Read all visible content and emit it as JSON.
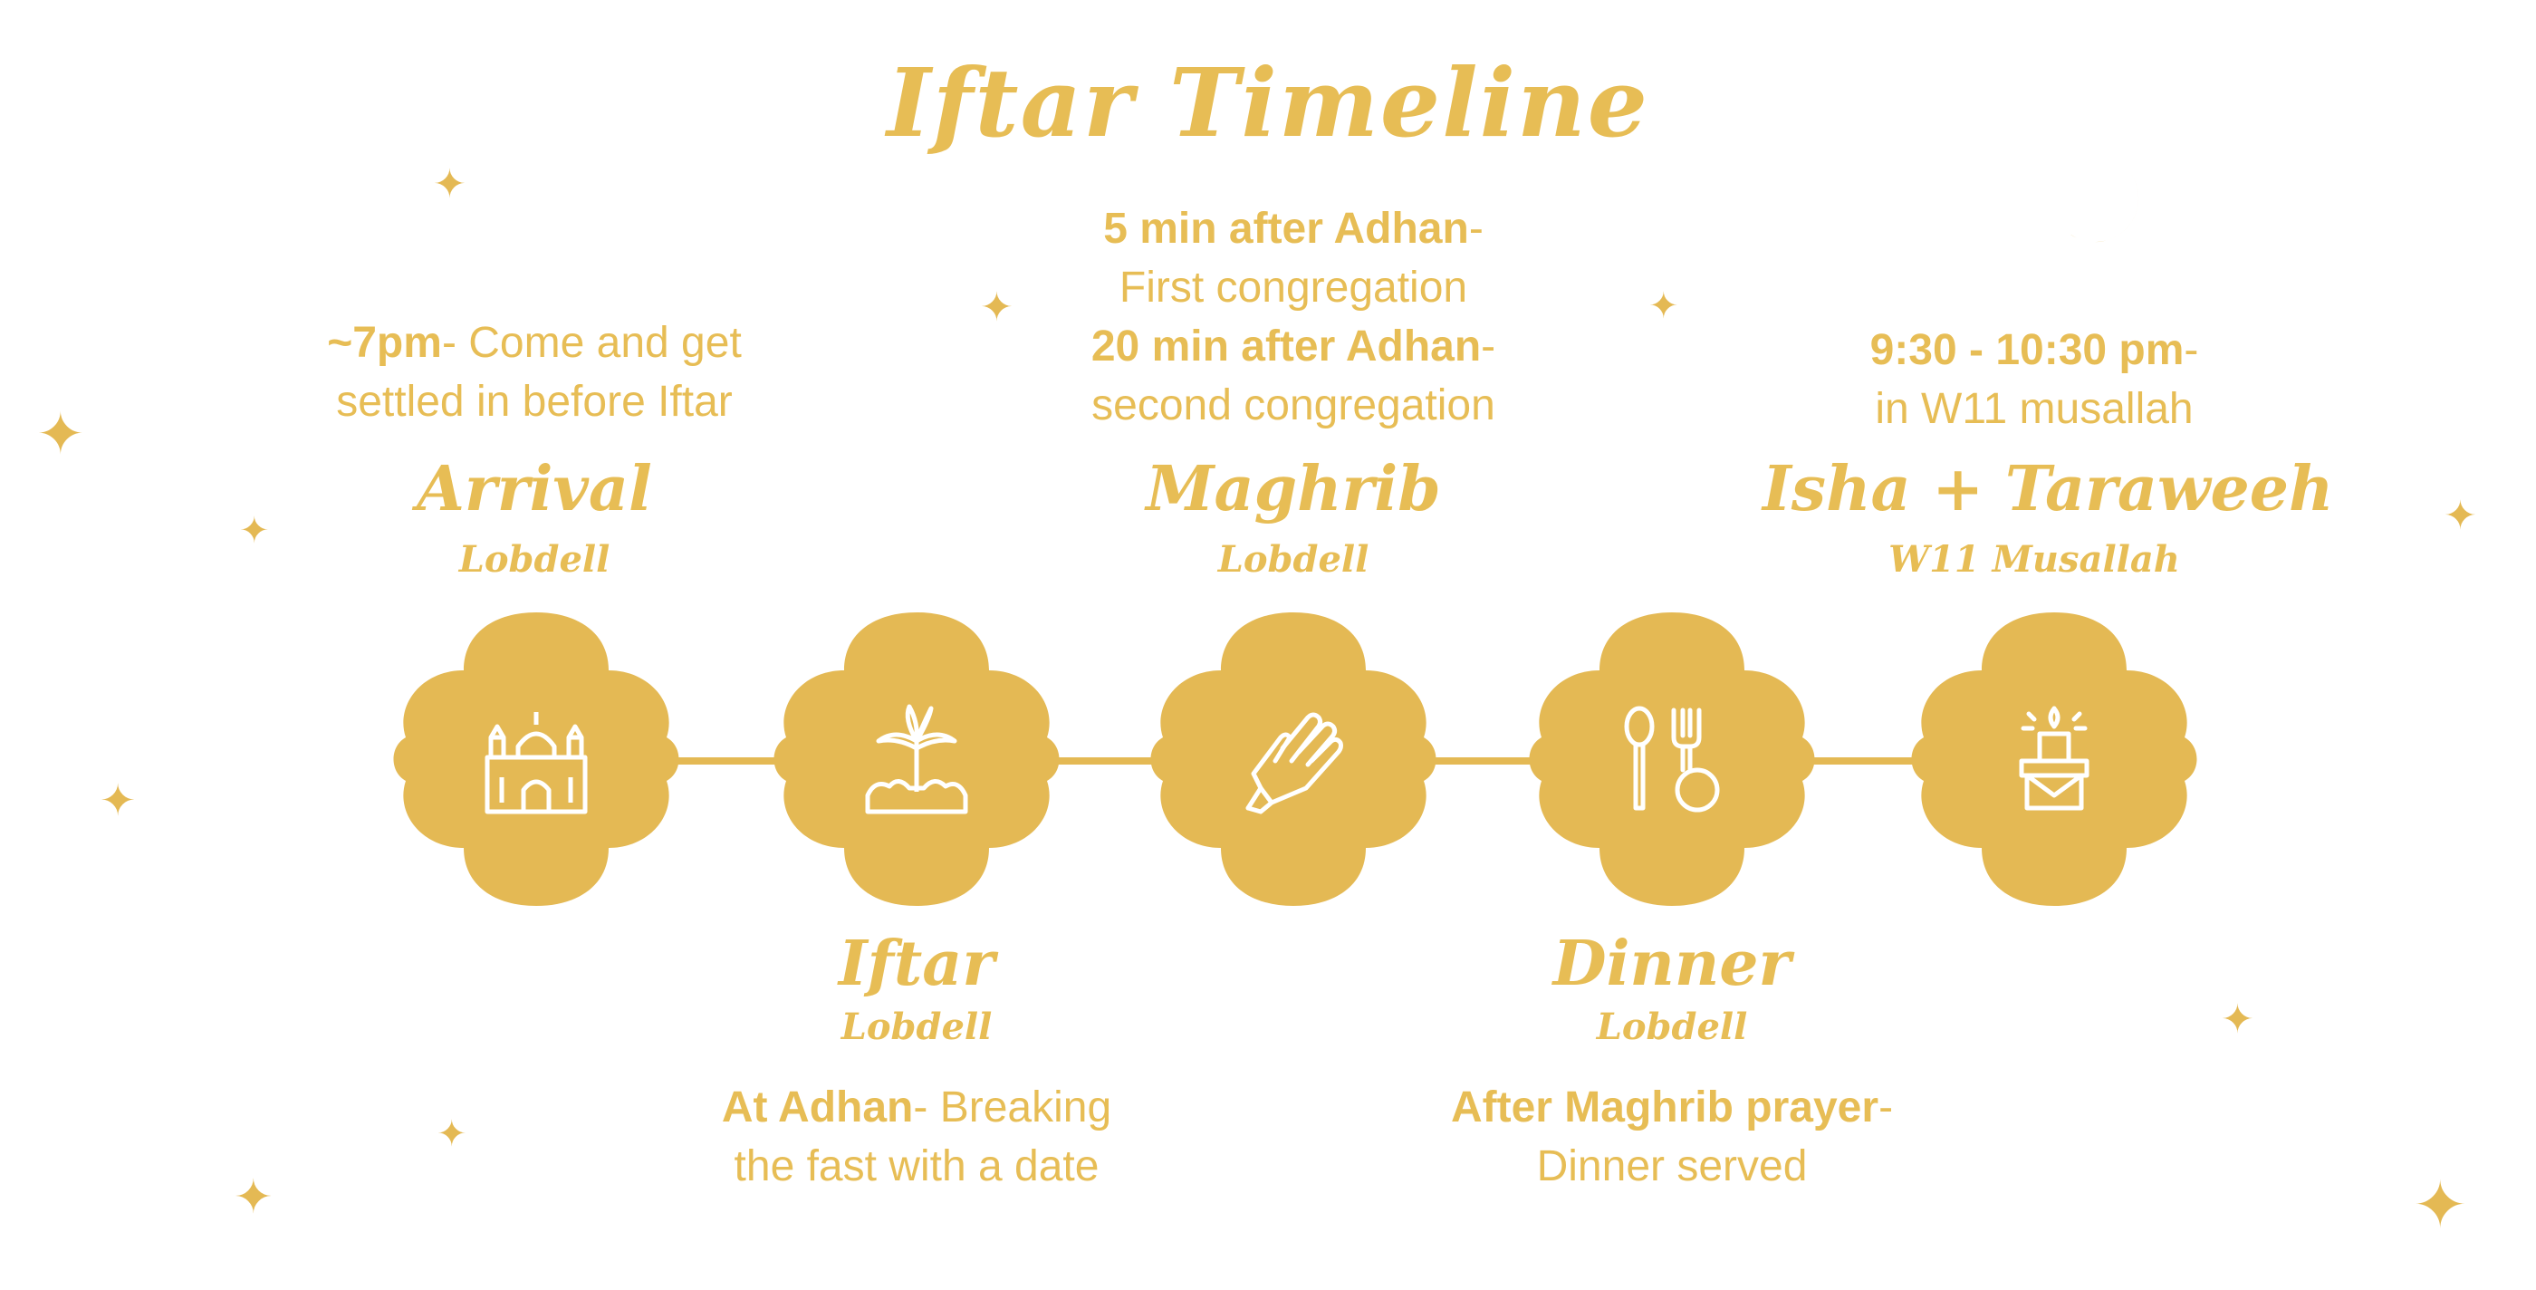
{
  "title": "Iftar Timeline",
  "stages": [
    {
      "name": "Arrival",
      "location": "Lobdell",
      "icon": "mosque-icon",
      "desc": [
        {
          "bold": "~7pm",
          "text": "- Come and get"
        },
        {
          "bold": "",
          "text": "settled in before Iftar"
        }
      ]
    },
    {
      "name": "Iftar",
      "location": "Lobdell",
      "icon": "date-palm-icon",
      "desc": [
        {
          "bold": "At Adhan",
          "text": "- Breaking"
        },
        {
          "bold": "",
          "text": "the fast with a date"
        }
      ]
    },
    {
      "name": "Maghrib",
      "location": "Lobdell",
      "icon": "praying-hands-icon",
      "desc": [
        {
          "bold": "5 min after Adhan",
          "text": "-"
        },
        {
          "bold": "",
          "text": "First congregation"
        },
        {
          "bold": "20 min after Adhan",
          "text": "-"
        },
        {
          "bold": "",
          "text": "second congregation"
        }
      ]
    },
    {
      "name": "Dinner",
      "location": "Lobdell",
      "icon": "spoon-fork-plate-icon",
      "desc": [
        {
          "bold": "After Maghrib prayer",
          "text": "-"
        },
        {
          "bold": "",
          "text": "Dinner served"
        }
      ]
    },
    {
      "name": "Isha + Taraweeh",
      "location": "W11 Musallah",
      "icon": "candle-icon",
      "desc": [
        {
          "bold": "9:30 - 10:30 pm",
          "text": "-"
        },
        {
          "bold": "",
          "text": "in W11 musallah"
        }
      ]
    }
  ],
  "decor": {
    "moon_icon": "crescent-moon-icon",
    "star_icon": "sparkle-star-icon"
  },
  "colors": {
    "gold": "#e7bd55",
    "node_fill": "#e4b954",
    "icon_stroke": "#ffffff",
    "background": "#ffffff"
  }
}
